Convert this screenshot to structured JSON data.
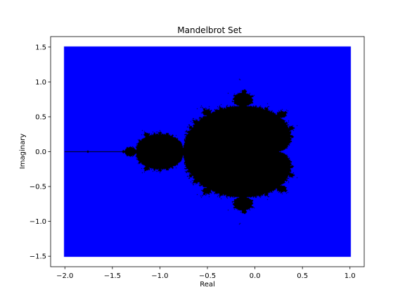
{
  "chart_data": {
    "type": "scatter",
    "title": "Mandelbrot Set",
    "xlabel": "Real",
    "ylabel": "Imaginary",
    "xlim": [
      -2.15,
      1.15
    ],
    "ylim": [
      -1.65,
      1.65
    ],
    "x_ticks": [
      -2.0,
      -1.5,
      -1.0,
      -0.5,
      0.0,
      0.5,
      1.0
    ],
    "x_tick_labels": [
      "−2.0",
      "−1.5",
      "−1.0",
      "−0.5",
      "0.0",
      "0.5",
      "1.0"
    ],
    "y_ticks": [
      -1.5,
      -1.0,
      -0.5,
      0.0,
      0.5,
      1.0,
      1.5
    ],
    "y_tick_labels": [
      "−1.5",
      "−1.0",
      "−0.5",
      "0.0",
      "0.5",
      "1.0",
      "1.5"
    ],
    "grid": false,
    "series": [
      {
        "role": "escaped points",
        "color": "#0000ff",
        "x_range": [
          -2.0,
          1.0
        ],
        "y_range": [
          -1.5,
          1.5
        ]
      },
      {
        "role": "points in set",
        "color": "#000000",
        "max_iterations": 60
      }
    ]
  }
}
